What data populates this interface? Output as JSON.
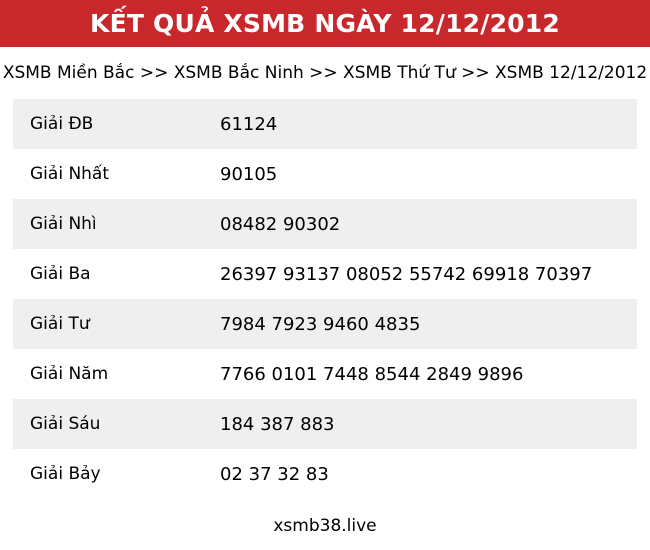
{
  "colors": {
    "header_bg": "#C8272C",
    "header_text": "#FFFFFF",
    "row_alt_bg": "#EFEFEF",
    "text": "#000000"
  },
  "header": {
    "title": "KẾT QUẢ XSMB NGÀY 12/12/2012"
  },
  "breadcrumb": {
    "separator": " >> ",
    "items": [
      "XSMB Miền Bắc",
      "XSMB Bắc Ninh",
      "XSMB Thứ Tư",
      "XSMB 12/12/2012"
    ]
  },
  "results": {
    "rows": [
      {
        "label": "Giải ĐB",
        "value": "61124"
      },
      {
        "label": "Giải Nhất",
        "value": "90105"
      },
      {
        "label": "Giải Nhì",
        "value": "08482 90302"
      },
      {
        "label": "Giải Ba",
        "value": "26397 93137 08052 55742 69918 70397"
      },
      {
        "label": "Giải Tư",
        "value": "7984 7923 9460 4835"
      },
      {
        "label": "Giải Năm",
        "value": "7766 0101 7448 8544 2849 9896"
      },
      {
        "label": "Giải Sáu",
        "value": "184 387 883"
      },
      {
        "label": "Giải Bảy",
        "value": "02 37 32 83"
      }
    ]
  },
  "footer": {
    "site": "xsmb38.live"
  }
}
